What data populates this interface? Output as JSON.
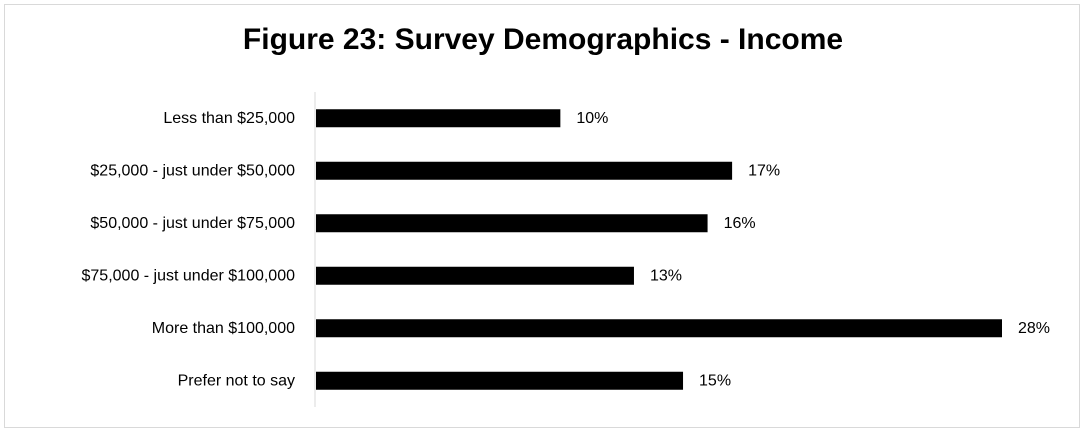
{
  "chart_data": {
    "type": "bar",
    "orientation": "horizontal",
    "title": "Figure 23: Survey Demographics - Income",
    "xlabel": "",
    "ylabel": "",
    "categories": [
      "Less than $25,000",
      "$25,000 - just under $50,000",
      "$50,000 - just under $75,000",
      "$75,000 - just under $100,000",
      "More than $100,000",
      "Prefer not to say"
    ],
    "values": [
      10,
      17,
      16,
      13,
      28,
      15
    ],
    "data_labels": [
      "10%",
      "17%",
      "16%",
      "13%",
      "28%",
      "15%"
    ],
    "unit": "%",
    "xlim": [
      0,
      28
    ],
    "grid": false,
    "legend": "none",
    "bar_color": "#000000",
    "axis_color": "#d9d9d9"
  }
}
